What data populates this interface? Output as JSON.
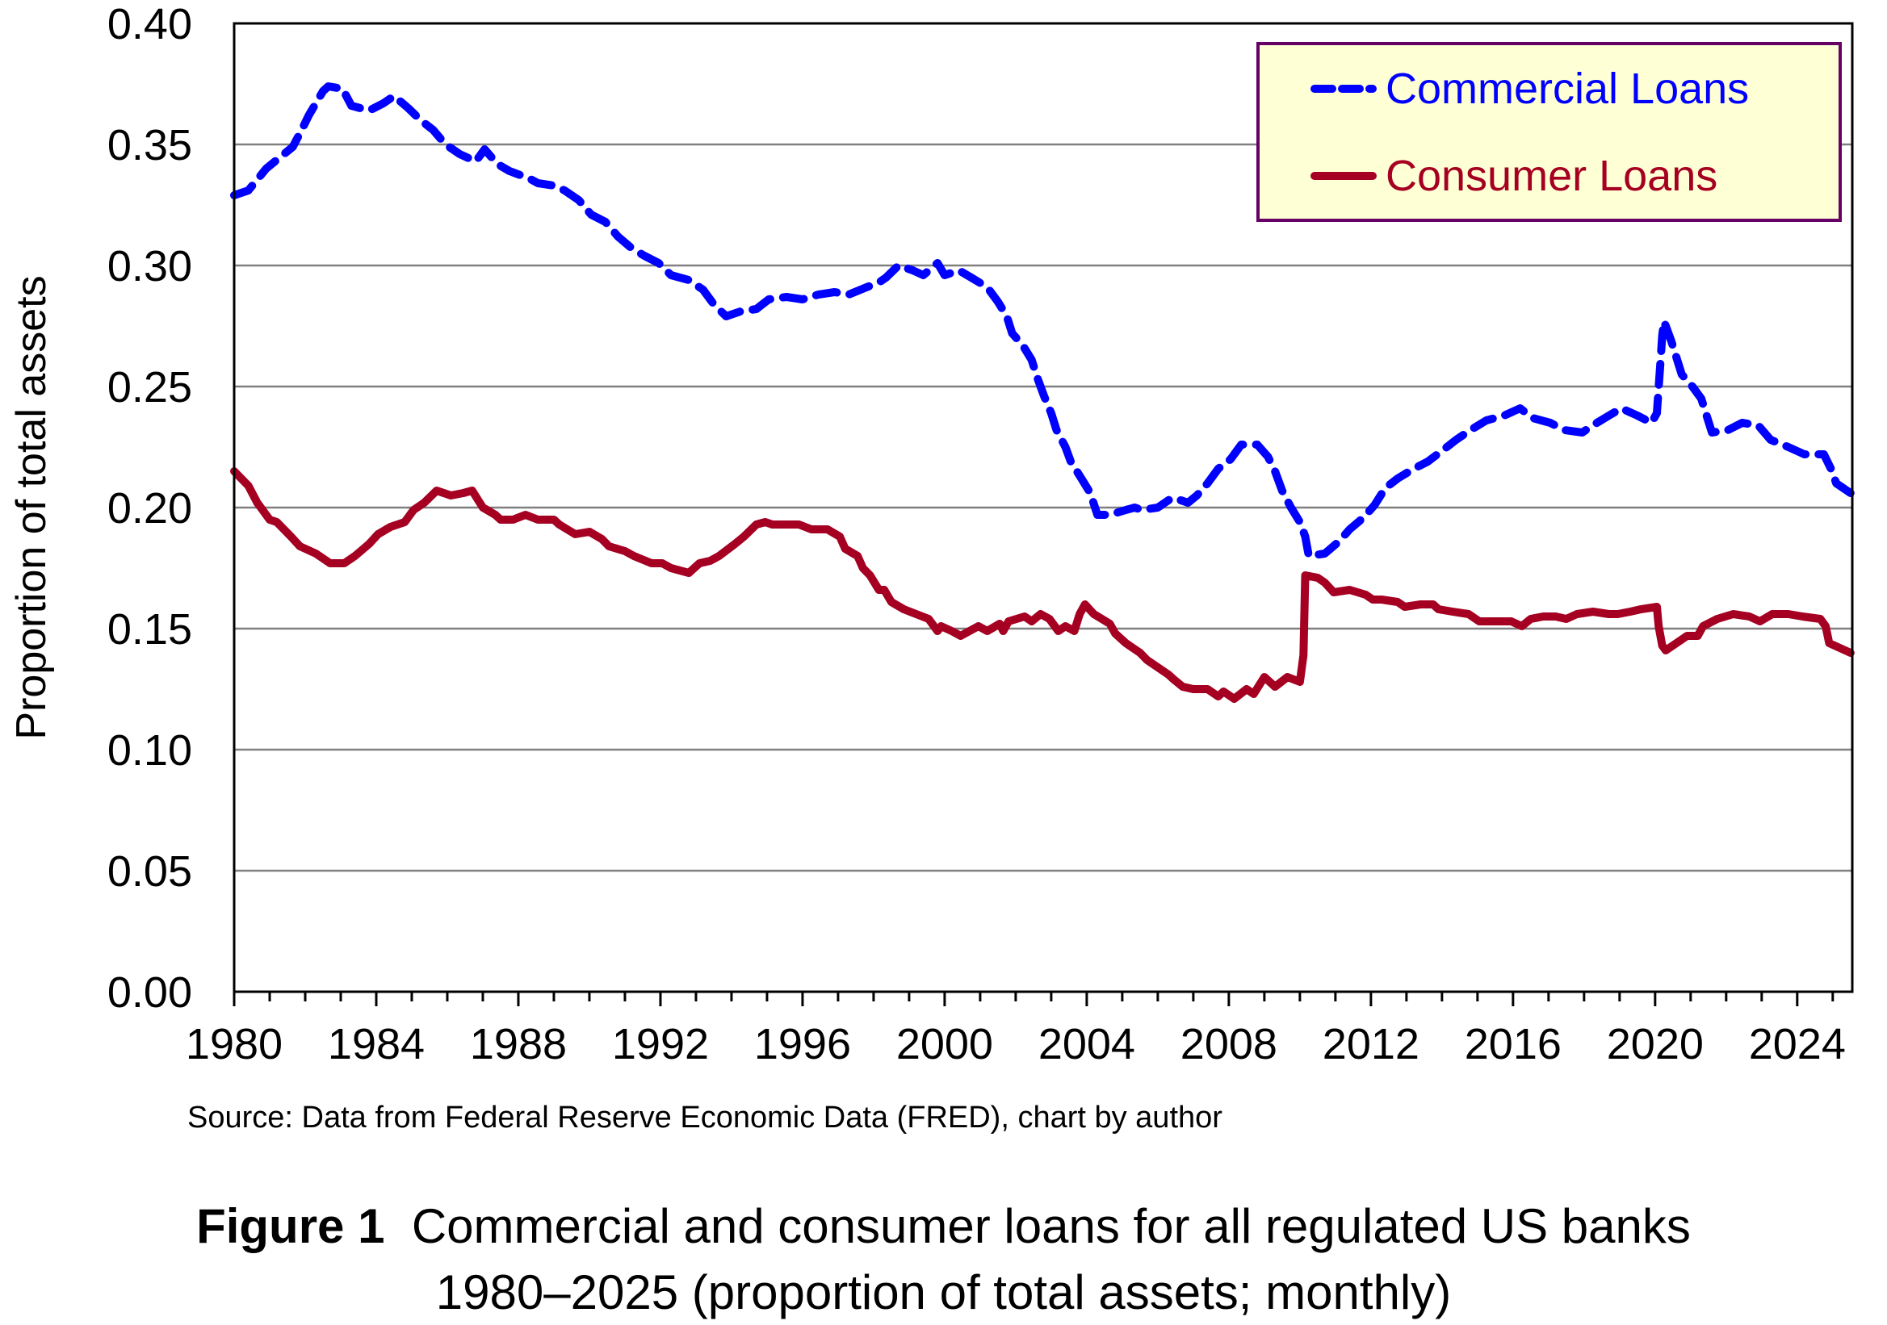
{
  "chart_data": {
    "type": "line",
    "title": "Commercial and consumer loans for all regulated US banks 1980–2025 (proportion of total assets; monthly)",
    "xlabel": "",
    "ylabel": "Proportion of total assets",
    "xlim": [
      1980,
      2025.55
    ],
    "ylim": [
      0.0,
      0.4
    ],
    "x_ticks": [
      "1980",
      "1984",
      "1988",
      "1992",
      "1996",
      "2000",
      "2004",
      "2008",
      "2012",
      "2016",
      "2020",
      "2024"
    ],
    "y_ticks": [
      "0.00",
      "0.05",
      "0.10",
      "0.15",
      "0.20",
      "0.25",
      "0.30",
      "0.35",
      "0.40"
    ],
    "y_tick_values": [
      0.0,
      0.05,
      0.1,
      0.15,
      0.2,
      0.25,
      0.3,
      0.35,
      0.4
    ],
    "grid": "horizontal",
    "legend_position": "top-right",
    "series": [
      {
        "name": "Commercial Loans",
        "color": "#0000FF",
        "style": "dashed",
        "points": [
          [
            1980.0,
            0.329
          ],
          [
            1980.4,
            0.331
          ],
          [
            1980.9,
            0.34
          ],
          [
            1981.65,
            0.349
          ],
          [
            1981.9,
            0.356
          ],
          [
            1982.1,
            0.362
          ],
          [
            1982.5,
            0.372
          ],
          [
            1982.65,
            0.374
          ],
          [
            1983.05,
            0.373
          ],
          [
            1983.3,
            0.366
          ],
          [
            1983.8,
            0.364
          ],
          [
            1984.2,
            0.367
          ],
          [
            1984.5,
            0.37
          ],
          [
            1984.9,
            0.365
          ],
          [
            1985.25,
            0.36
          ],
          [
            1985.6,
            0.356
          ],
          [
            1985.95,
            0.35
          ],
          [
            1986.35,
            0.346
          ],
          [
            1986.8,
            0.343
          ],
          [
            1987.05,
            0.348
          ],
          [
            1987.4,
            0.342
          ],
          [
            1987.75,
            0.339
          ],
          [
            1988.3,
            0.336
          ],
          [
            1988.55,
            0.334
          ],
          [
            1989.0,
            0.333
          ],
          [
            1989.3,
            0.331
          ],
          [
            1989.7,
            0.327
          ],
          [
            1990.05,
            0.321
          ],
          [
            1990.45,
            0.318
          ],
          [
            1990.8,
            0.312
          ],
          [
            1991.2,
            0.307
          ],
          [
            1991.55,
            0.304
          ],
          [
            1991.95,
            0.301
          ],
          [
            1992.3,
            0.296
          ],
          [
            1992.8,
            0.294
          ],
          [
            1993.2,
            0.29
          ],
          [
            1993.5,
            0.284
          ],
          [
            1993.85,
            0.279
          ],
          [
            1994.25,
            0.281
          ],
          [
            1994.7,
            0.282
          ],
          [
            1995.05,
            0.286
          ],
          [
            1995.55,
            0.287
          ],
          [
            1996.0,
            0.286
          ],
          [
            1996.45,
            0.288
          ],
          [
            1996.9,
            0.289
          ],
          [
            1997.3,
            0.288
          ],
          [
            1997.8,
            0.291
          ],
          [
            1998.15,
            0.293
          ],
          [
            1998.35,
            0.295
          ],
          [
            1998.7,
            0.3
          ],
          [
            1999.1,
            0.298
          ],
          [
            1999.4,
            0.296
          ],
          [
            1999.8,
            0.301
          ],
          [
            2000.0,
            0.296
          ],
          [
            2000.4,
            0.298
          ],
          [
            2000.75,
            0.295
          ],
          [
            2001.2,
            0.291
          ],
          [
            2001.5,
            0.285
          ],
          [
            2001.75,
            0.279
          ],
          [
            2001.9,
            0.272
          ],
          [
            2002.2,
            0.267
          ],
          [
            2002.45,
            0.261
          ],
          [
            2002.6,
            0.254
          ],
          [
            2002.8,
            0.246
          ],
          [
            2003.0,
            0.239
          ],
          [
            2003.15,
            0.232
          ],
          [
            2003.4,
            0.225
          ],
          [
            2003.55,
            0.219
          ],
          [
            2003.85,
            0.212
          ],
          [
            2004.1,
            0.206
          ],
          [
            2004.3,
            0.197
          ],
          [
            2004.65,
            0.197
          ],
          [
            2005.1,
            0.199
          ],
          [
            2005.35,
            0.2
          ],
          [
            2005.55,
            0.199
          ],
          [
            2006.0,
            0.2
          ],
          [
            2006.4,
            0.204
          ],
          [
            2006.65,
            0.203
          ],
          [
            2006.85,
            0.202
          ],
          [
            2007.1,
            0.205
          ],
          [
            2007.4,
            0.21
          ],
          [
            2007.7,
            0.216
          ],
          [
            2008.05,
            0.22
          ],
          [
            2008.35,
            0.226
          ],
          [
            2008.8,
            0.226
          ],
          [
            2009.1,
            0.221
          ],
          [
            2009.3,
            0.215
          ],
          [
            2009.5,
            0.207
          ],
          [
            2009.75,
            0.2
          ],
          [
            2010.0,
            0.194
          ],
          [
            2010.15,
            0.188
          ],
          [
            2010.25,
            0.18
          ],
          [
            2010.7,
            0.181
          ],
          [
            2011.1,
            0.186
          ],
          [
            2011.4,
            0.191
          ],
          [
            2011.8,
            0.196
          ],
          [
            2012.1,
            0.201
          ],
          [
            2012.4,
            0.208
          ],
          [
            2012.75,
            0.212
          ],
          [
            2013.2,
            0.216
          ],
          [
            2013.6,
            0.219
          ],
          [
            2014.05,
            0.224
          ],
          [
            2014.4,
            0.228
          ],
          [
            2014.8,
            0.232
          ],
          [
            2015.25,
            0.236
          ],
          [
            2015.75,
            0.238
          ],
          [
            2016.2,
            0.241
          ],
          [
            2016.55,
            0.237
          ],
          [
            2017.05,
            0.235
          ],
          [
            2017.45,
            0.232
          ],
          [
            2017.95,
            0.231
          ],
          [
            2018.25,
            0.234
          ],
          [
            2018.7,
            0.238
          ],
          [
            2019.05,
            0.241
          ],
          [
            2019.5,
            0.238
          ],
          [
            2019.9,
            0.235
          ],
          [
            2020.05,
            0.239
          ],
          [
            2020.15,
            0.26
          ],
          [
            2020.2,
            0.271
          ],
          [
            2020.25,
            0.277
          ],
          [
            2020.45,
            0.269
          ],
          [
            2020.75,
            0.255
          ],
          [
            2021.05,
            0.25
          ],
          [
            2021.3,
            0.245
          ],
          [
            2021.6,
            0.231
          ],
          [
            2022.05,
            0.232
          ],
          [
            2022.45,
            0.235
          ],
          [
            2022.9,
            0.234
          ],
          [
            2023.25,
            0.228
          ],
          [
            2023.75,
            0.225
          ],
          [
            2024.2,
            0.222
          ],
          [
            2024.75,
            0.222
          ],
          [
            2024.95,
            0.216
          ],
          [
            2025.1,
            0.21
          ],
          [
            2025.5,
            0.206
          ]
        ]
      },
      {
        "name": "Consumer Loans",
        "color": "#A50021",
        "style": "solid",
        "points": [
          [
            1980.0,
            0.215
          ],
          [
            1980.4,
            0.209
          ],
          [
            1980.65,
            0.202
          ],
          [
            1981.0,
            0.195
          ],
          [
            1981.2,
            0.194
          ],
          [
            1981.6,
            0.188
          ],
          [
            1981.85,
            0.184
          ],
          [
            1982.3,
            0.181
          ],
          [
            1982.7,
            0.177
          ],
          [
            1983.1,
            0.177
          ],
          [
            1983.4,
            0.18
          ],
          [
            1983.8,
            0.185
          ],
          [
            1984.05,
            0.189
          ],
          [
            1984.4,
            0.192
          ],
          [
            1984.8,
            0.194
          ],
          [
            1985.05,
            0.199
          ],
          [
            1985.35,
            0.202
          ],
          [
            1985.7,
            0.207
          ],
          [
            1986.1,
            0.205
          ],
          [
            1986.45,
            0.206
          ],
          [
            1986.7,
            0.207
          ],
          [
            1987.0,
            0.2
          ],
          [
            1987.35,
            0.197
          ],
          [
            1987.5,
            0.195
          ],
          [
            1987.85,
            0.195
          ],
          [
            1988.2,
            0.197
          ],
          [
            1988.55,
            0.195
          ],
          [
            1989.0,
            0.195
          ],
          [
            1989.15,
            0.193
          ],
          [
            1989.6,
            0.189
          ],
          [
            1990.0,
            0.19
          ],
          [
            1990.35,
            0.187
          ],
          [
            1990.55,
            0.184
          ],
          [
            1991.0,
            0.182
          ],
          [
            1991.25,
            0.18
          ],
          [
            1991.75,
            0.177
          ],
          [
            1992.05,
            0.177
          ],
          [
            1992.3,
            0.175
          ],
          [
            1992.8,
            0.173
          ],
          [
            1993.1,
            0.177
          ],
          [
            1993.4,
            0.178
          ],
          [
            1993.65,
            0.18
          ],
          [
            1994.1,
            0.185
          ],
          [
            1994.35,
            0.188
          ],
          [
            1994.7,
            0.193
          ],
          [
            1994.95,
            0.194
          ],
          [
            1995.15,
            0.193
          ],
          [
            1995.55,
            0.193
          ],
          [
            1995.9,
            0.193
          ],
          [
            1996.25,
            0.191
          ],
          [
            1996.7,
            0.191
          ],
          [
            1997.05,
            0.188
          ],
          [
            1997.2,
            0.183
          ],
          [
            1997.55,
            0.18
          ],
          [
            1997.7,
            0.175
          ],
          [
            1997.9,
            0.172
          ],
          [
            1998.15,
            0.166
          ],
          [
            1998.3,
            0.166
          ],
          [
            1998.5,
            0.161
          ],
          [
            1998.85,
            0.158
          ],
          [
            1999.2,
            0.156
          ],
          [
            1999.55,
            0.154
          ],
          [
            1999.8,
            0.149
          ],
          [
            1999.9,
            0.151
          ],
          [
            2000.2,
            0.149
          ],
          [
            2000.45,
            0.147
          ],
          [
            2000.7,
            0.149
          ],
          [
            2000.95,
            0.151
          ],
          [
            2001.2,
            0.149
          ],
          [
            2001.55,
            0.152
          ],
          [
            2001.65,
            0.149
          ],
          [
            2001.8,
            0.153
          ],
          [
            2002.25,
            0.155
          ],
          [
            2002.45,
            0.153
          ],
          [
            2002.7,
            0.156
          ],
          [
            2002.95,
            0.154
          ],
          [
            2003.2,
            0.149
          ],
          [
            2003.4,
            0.151
          ],
          [
            2003.65,
            0.149
          ],
          [
            2003.8,
            0.156
          ],
          [
            2003.95,
            0.16
          ],
          [
            2004.2,
            0.156
          ],
          [
            2004.65,
            0.152
          ],
          [
            2004.8,
            0.148
          ],
          [
            2005.1,
            0.144
          ],
          [
            2005.5,
            0.14
          ],
          [
            2005.7,
            0.137
          ],
          [
            2006.0,
            0.134
          ],
          [
            2006.3,
            0.131
          ],
          [
            2006.45,
            0.129
          ],
          [
            2006.7,
            0.126
          ],
          [
            2007.0,
            0.125
          ],
          [
            2007.4,
            0.125
          ],
          [
            2007.7,
            0.122
          ],
          [
            2007.85,
            0.124
          ],
          [
            2008.15,
            0.121
          ],
          [
            2008.5,
            0.125
          ],
          [
            2008.7,
            0.123
          ],
          [
            2009.0,
            0.13
          ],
          [
            2009.3,
            0.126
          ],
          [
            2009.65,
            0.13
          ],
          [
            2010.0,
            0.128
          ],
          [
            2010.1,
            0.139
          ],
          [
            2010.15,
            0.172
          ],
          [
            2010.5,
            0.171
          ],
          [
            2010.7,
            0.169
          ],
          [
            2010.95,
            0.165
          ],
          [
            2011.4,
            0.166
          ],
          [
            2011.85,
            0.164
          ],
          [
            2012.05,
            0.162
          ],
          [
            2012.3,
            0.162
          ],
          [
            2012.75,
            0.161
          ],
          [
            2012.95,
            0.159
          ],
          [
            2013.4,
            0.16
          ],
          [
            2013.75,
            0.16
          ],
          [
            2013.9,
            0.158
          ],
          [
            2014.3,
            0.157
          ],
          [
            2014.75,
            0.156
          ],
          [
            2015.05,
            0.153
          ],
          [
            2015.55,
            0.153
          ],
          [
            2015.95,
            0.153
          ],
          [
            2016.25,
            0.151
          ],
          [
            2016.5,
            0.154
          ],
          [
            2016.85,
            0.155
          ],
          [
            2017.2,
            0.155
          ],
          [
            2017.5,
            0.154
          ],
          [
            2017.8,
            0.156
          ],
          [
            2018.25,
            0.157
          ],
          [
            2018.7,
            0.156
          ],
          [
            2018.95,
            0.156
          ],
          [
            2019.3,
            0.157
          ],
          [
            2019.6,
            0.158
          ],
          [
            2020.05,
            0.159
          ],
          [
            2020.1,
            0.151
          ],
          [
            2020.2,
            0.143
          ],
          [
            2020.3,
            0.141
          ],
          [
            2020.6,
            0.144
          ],
          [
            2020.9,
            0.147
          ],
          [
            2021.2,
            0.147
          ],
          [
            2021.35,
            0.151
          ],
          [
            2021.75,
            0.154
          ],
          [
            2022.2,
            0.156
          ],
          [
            2022.65,
            0.155
          ],
          [
            2022.95,
            0.153
          ],
          [
            2023.3,
            0.156
          ],
          [
            2023.75,
            0.156
          ],
          [
            2024.15,
            0.155
          ],
          [
            2024.65,
            0.154
          ],
          [
            2024.8,
            0.151
          ],
          [
            2024.9,
            0.144
          ],
          [
            2025.2,
            0.142
          ],
          [
            2025.5,
            0.14
          ]
        ]
      }
    ],
    "source_note": "Source: Data from Federal Reserve Economic Data (FRED), chart by author"
  },
  "caption": {
    "figure_label": "Figure 1",
    "line1": "Commercial and consumer loans for all regulated US banks",
    "line2": "1980–2025 (proportion of total assets; monthly)"
  },
  "legend": {
    "items": [
      {
        "label": "Commercial Loans",
        "color": "#0000FF"
      },
      {
        "label": "Consumer Loans",
        "color": "#A50021"
      }
    ],
    "fill": "#FFFFD5",
    "border": "#660066"
  }
}
